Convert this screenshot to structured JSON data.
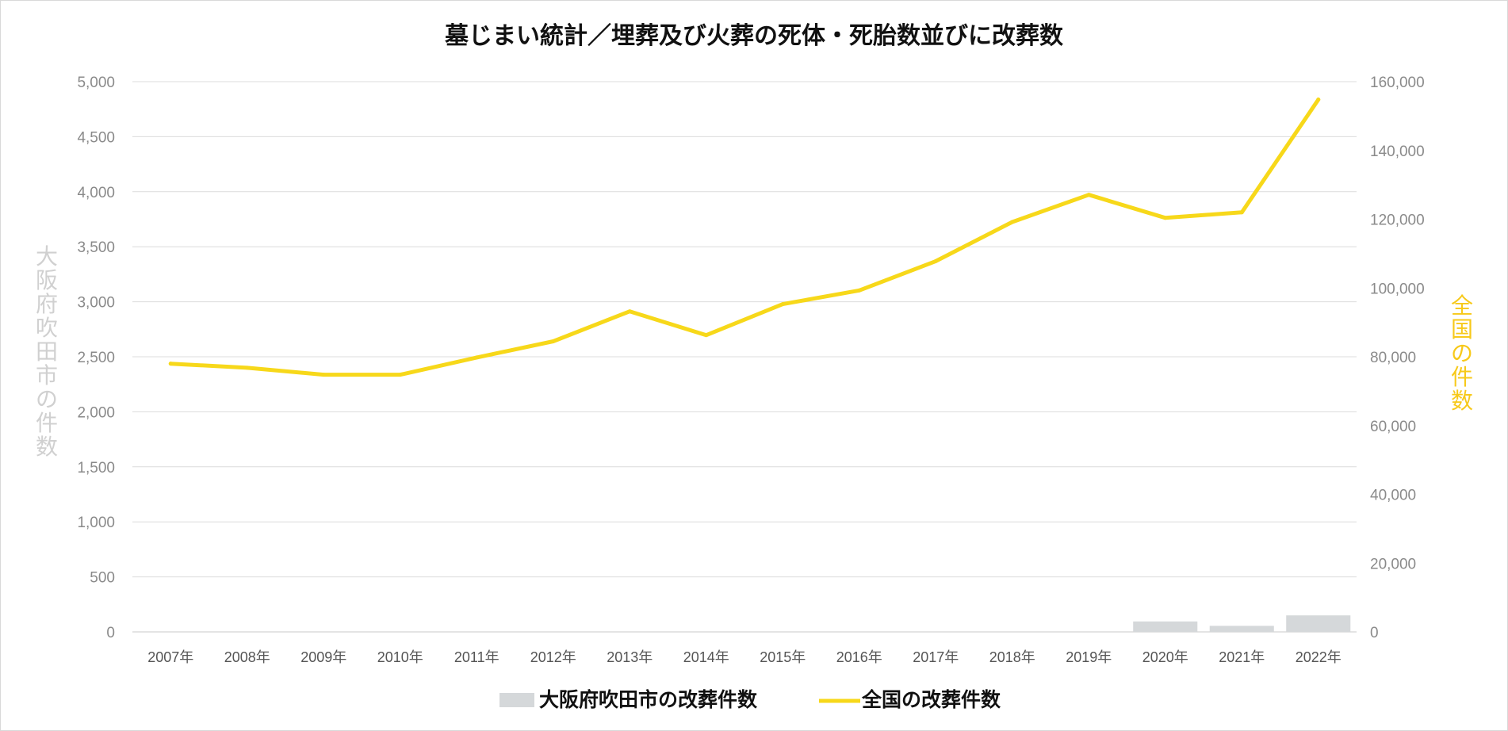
{
  "chart_data": {
    "type": "bar+line",
    "title": "墓じまい統計／埋葬及び火葬の死体・死胎数並びに改葬数",
    "categories": [
      "2007年",
      "2008年",
      "2009年",
      "2010年",
      "2011年",
      "2012年",
      "2013年",
      "2014年",
      "2015年",
      "2016年",
      "2017年",
      "2018年",
      "2019年",
      "2020年",
      "2021年",
      "2022年"
    ],
    "series": [
      {
        "name": "大阪府吹田市の改葬件数",
        "type": "bar",
        "axis": "left",
        "color": "#d5d8da",
        "values": [
          0,
          0,
          0,
          0,
          0,
          0,
          0,
          0,
          0,
          0,
          0,
          0,
          0,
          95,
          55,
          150
        ]
      },
      {
        "name": "全国の改葬件数",
        "type": "line",
        "axis": "right",
        "color": "#f7d81a",
        "values": [
          78000,
          76800,
          74800,
          74800,
          79800,
          84500,
          93200,
          86300,
          95300,
          99300,
          107800,
          119200,
          127100,
          120400,
          122000,
          154800
        ]
      }
    ],
    "y_left": {
      "label": "大阪府吹田市の件数",
      "color": "#d0d0d0",
      "range": [
        0,
        5000
      ],
      "ticks": [
        "0",
        "500",
        "1,000",
        "1,500",
        "2,000",
        "2,500",
        "3,000",
        "3,500",
        "4,000",
        "4,500",
        "5,000"
      ]
    },
    "y_right": {
      "label": "全国の件数",
      "color": "#f7c91a",
      "range": [
        0,
        160000
      ],
      "ticks": [
        "0",
        "20,000",
        "40,000",
        "60,000",
        "80,000",
        "100,000",
        "120,000",
        "140,000",
        "160,000"
      ]
    },
    "grid": true,
    "legend_position": "bottom"
  }
}
